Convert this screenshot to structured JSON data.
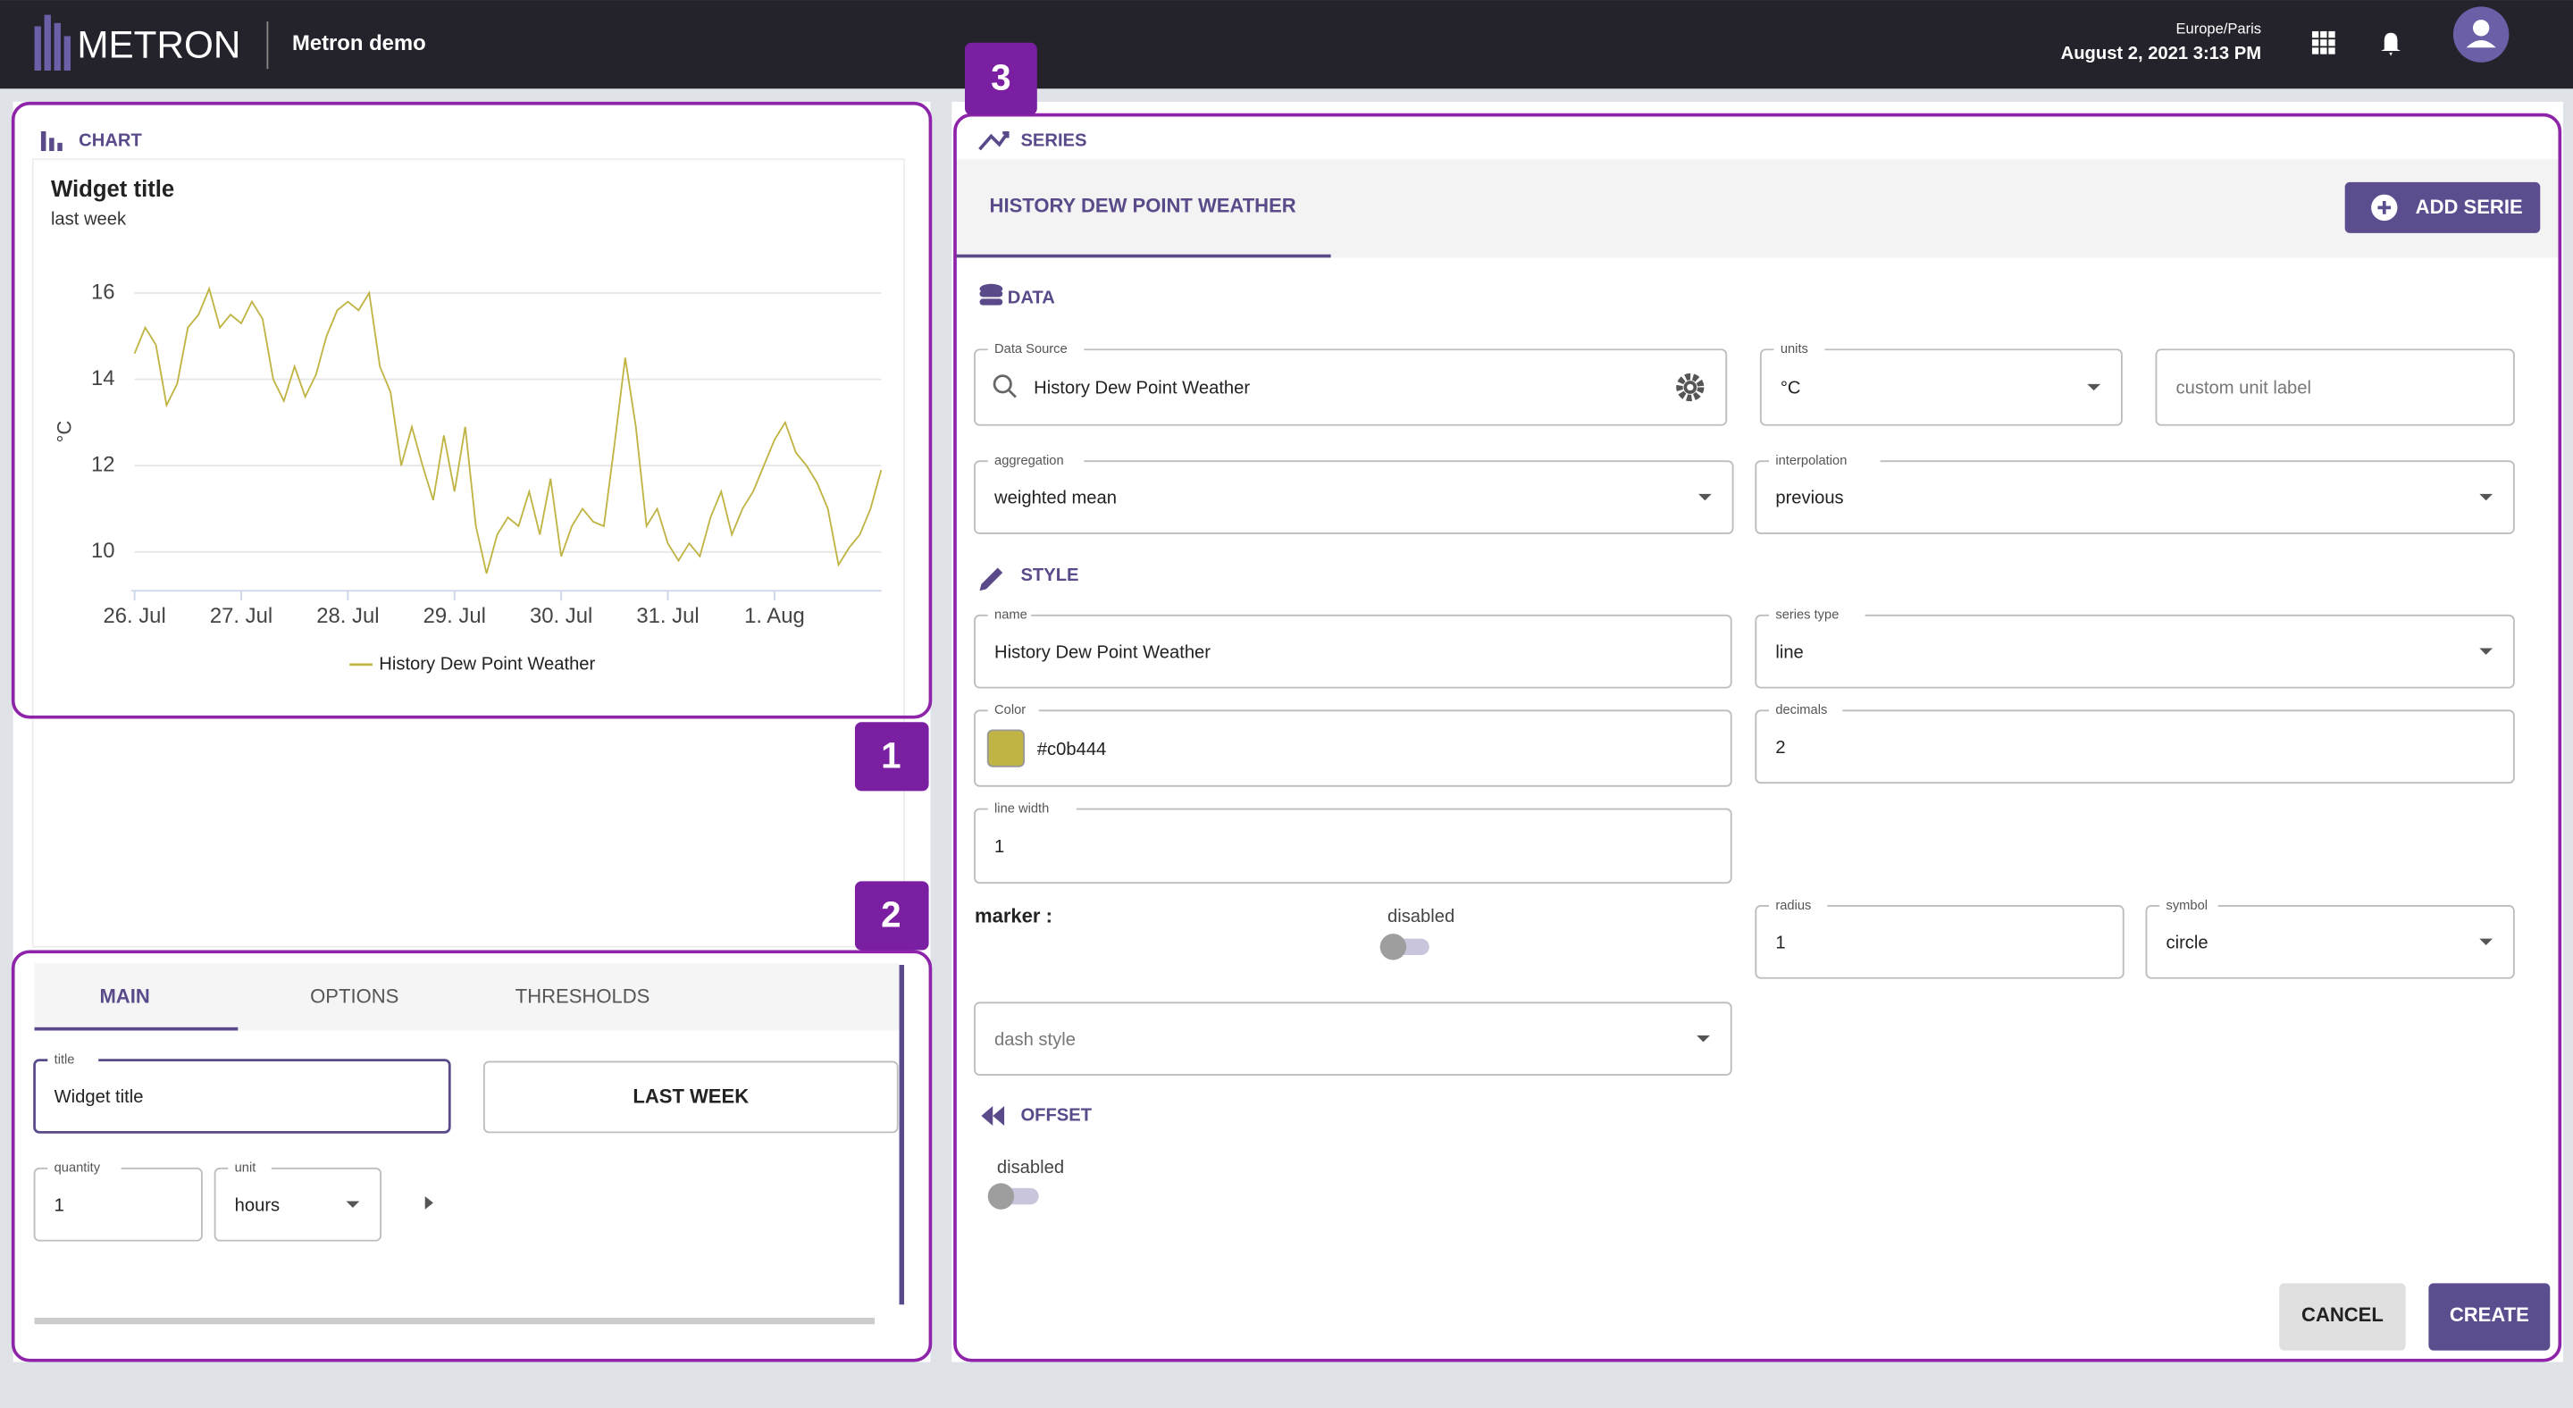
{
  "header": {
    "logo": "METRON",
    "app": "Metron demo",
    "timezone": "Europe/Paris",
    "datetime": "August 2, 2021 3:13 PM"
  },
  "badges": [
    "1",
    "2",
    "3"
  ],
  "chart_panel": {
    "heading": "CHART"
  },
  "chart_data": {
    "type": "line",
    "title": "Widget title",
    "subtitle": "last week",
    "y_label": "°C",
    "x": [
      0,
      0.1,
      0.2,
      0.3,
      0.4,
      0.5,
      0.6,
      0.7,
      0.8,
      0.9,
      1,
      1.1,
      1.2,
      1.3,
      1.4,
      1.5,
      1.6,
      1.7,
      1.8,
      1.9,
      2,
      2.1,
      2.2,
      2.3,
      2.4,
      2.5,
      2.6,
      2.7,
      2.8,
      2.9,
      3,
      3.1,
      3.2,
      3.3,
      3.4,
      3.5,
      3.6,
      3.7,
      3.8,
      3.9,
      4,
      4.1,
      4.2,
      4.3,
      4.4,
      4.5,
      4.6,
      4.7,
      4.8,
      4.9,
      5,
      5.1,
      5.2,
      5.3,
      5.4,
      5.5,
      5.6,
      5.7,
      5.8,
      5.9,
      6,
      6.1,
      6.2,
      6.3,
      6.4,
      6.5,
      6.6,
      6.7,
      6.8,
      6.9,
      7
    ],
    "series": [
      {
        "name": "History Dew Point Weather",
        "color": "#c0b444",
        "values": [
          14.6,
          15.2,
          14.8,
          13.4,
          13.9,
          15.2,
          15.5,
          16.1,
          15.2,
          15.5,
          15.3,
          15.8,
          15.4,
          14.0,
          13.5,
          14.3,
          13.6,
          14.1,
          15.0,
          15.6,
          15.8,
          15.6,
          16.0,
          14.3,
          13.7,
          12.0,
          12.9,
          12.0,
          11.2,
          12.7,
          11.4,
          12.9,
          10.6,
          9.5,
          10.4,
          10.8,
          10.6,
          11.4,
          10.4,
          11.7,
          9.9,
          10.6,
          11.0,
          10.7,
          10.6,
          12.5,
          14.5,
          12.9,
          10.6,
          11.0,
          10.2,
          9.8,
          10.2,
          9.9,
          10.8,
          11.4,
          10.4,
          11.0,
          11.4,
          12.0,
          12.6,
          13.0,
          12.3,
          12.0,
          11.6,
          11.0,
          9.7,
          10.1,
          10.4,
          11.0,
          11.9
        ]
      }
    ],
    "xlim": [
      0,
      7
    ],
    "xticks": [
      {
        "value": 0,
        "label": "26. Jul"
      },
      {
        "value": 1,
        "label": "27. Jul"
      },
      {
        "value": 2,
        "label": "28. Jul"
      },
      {
        "value": 3,
        "label": "29. Jul"
      },
      {
        "value": 4,
        "label": "30. Jul"
      },
      {
        "value": 5,
        "label": "31. Jul"
      },
      {
        "value": 6,
        "label": "1. Aug"
      }
    ],
    "ylim": [
      9.1,
      16.5
    ],
    "yticks": [
      10,
      12,
      14,
      16
    ],
    "grid": true,
    "legend": "bottom"
  },
  "editor": {
    "tabs": [
      "MAIN",
      "OPTIONS",
      "THRESHOLDS"
    ],
    "fields": [
      {
        "label": "title",
        "value": "Widget title"
      },
      {
        "label": "quantity",
        "value": "1"
      },
      {
        "label": "unit",
        "value": "hours"
      }
    ],
    "period_button": "LAST WEEK"
  },
  "series_panel": {
    "heading": "SERIES",
    "tab": "HISTORY DEW POINT WEATHER",
    "add_button": "ADD SERIE",
    "sections": [
      "DATA",
      "STYLE",
      "OFFSET"
    ],
    "fields": [
      {
        "label": "Data Source",
        "value": "History Dew Point Weather"
      },
      {
        "label": "units",
        "value": "°C"
      },
      {
        "placeholder": "custom unit label"
      },
      {
        "label": "aggregation",
        "value": "weighted mean"
      },
      {
        "label": "interpolation",
        "value": "previous"
      },
      {
        "label": "name",
        "value": "History Dew Point Weather"
      },
      {
        "label": "series type",
        "value": "line"
      },
      {
        "label": "Color",
        "value": "#c0b444"
      },
      {
        "label": "decimals",
        "value": "2"
      },
      {
        "label": "line width",
        "value": "1"
      },
      {
        "label": "radius",
        "value": "1"
      },
      {
        "label": "symbol",
        "value": "circle"
      },
      {
        "placeholder": "dash style"
      }
    ],
    "marker_label": "marker :",
    "marker_state": "disabled",
    "offset_state": "disabled",
    "cancel": "CANCEL",
    "create": "CREATE"
  }
}
